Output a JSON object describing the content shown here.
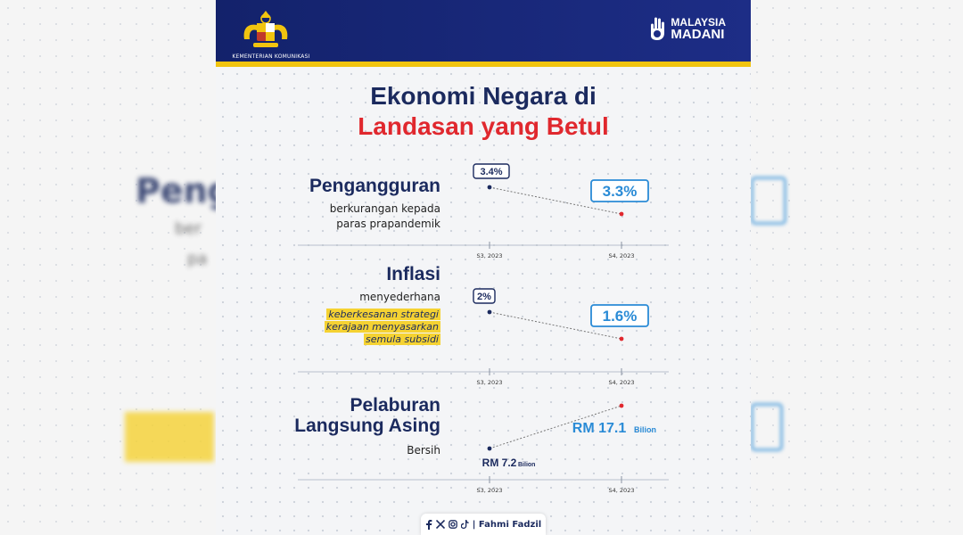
{
  "header": {
    "ministry": "KEMENTERIAN KOMUNIKASI",
    "brand_line1": "MALAYSIA",
    "brand_line2": "MADANI"
  },
  "title": {
    "line1": "Ekonomi Negara di",
    "line2": "Landasan yang Betul"
  },
  "sections": [
    {
      "title": "Pengangguran",
      "subtitle_lines": [
        "berkurangan kepada",
        "paras prapandemik"
      ]
    },
    {
      "title": "Inflasi",
      "subtitle_lines": [
        "menyederhana"
      ],
      "highlight_lines": [
        "keberkesanan strategi",
        "kerajaan menyasarkan",
        "semula subsidi"
      ]
    },
    {
      "title": "Pelaburan",
      "title2": "Langsung Asing",
      "subtitle_lines": [
        "Bersih"
      ]
    }
  ],
  "colors": {
    "navy": "#1b2a5e",
    "red": "#e0282e",
    "blue": "#2a8bd6",
    "yellow": "#f5d232"
  },
  "chart_data": [
    {
      "type": "line",
      "categories": [
        "S3, 2023",
        "S4, 2023"
      ],
      "values": [
        3.4,
        3.3
      ],
      "labels": [
        "3.4%",
        "3.3%"
      ]
    },
    {
      "type": "line",
      "categories": [
        "S3, 2023",
        "S4, 2023"
      ],
      "values": [
        2,
        1.6
      ],
      "labels": [
        "2%",
        "1.6%"
      ]
    },
    {
      "type": "line",
      "categories": [
        "S3, 2023",
        "S4, 2023"
      ],
      "values": [
        7.2,
        17.1
      ],
      "labels": [
        "RM 7.2",
        "RM 17.1"
      ],
      "unit": "Bilion"
    }
  ],
  "footer": {
    "icons": [
      "facebook-icon",
      "x-icon",
      "instagram-icon",
      "tiktok-icon"
    ],
    "name": "| Fahmi Fadzil"
  },
  "background": {
    "ghost_text": "Peng",
    "ghost_sub1": "ber",
    "ghost_sub2": "pa"
  }
}
